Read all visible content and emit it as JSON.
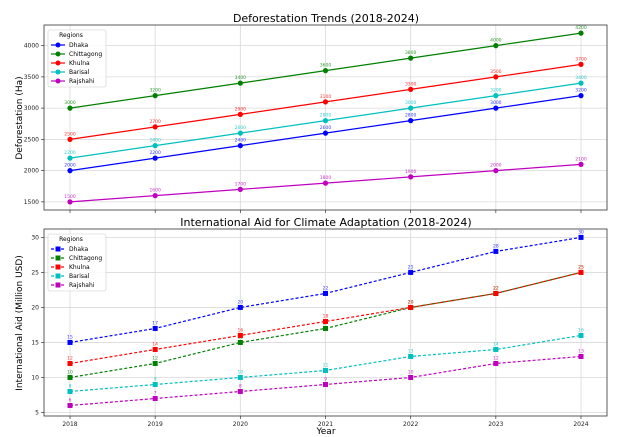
{
  "chart_data": [
    {
      "type": "line",
      "title": "Deforestation Trends (2018-2024)",
      "xlabel": "",
      "ylabel": "Deforestation (Ha)",
      "x": [
        2018,
        2019,
        2020,
        2021,
        2022,
        2023,
        2024
      ],
      "xticks": [
        "2018",
        "2019",
        "2020",
        "2021",
        "2022",
        "2023",
        "2024"
      ],
      "ylim": [
        1370,
        4330
      ],
      "yticks": [
        1500,
        2000,
        2500,
        3000,
        3500,
        4000
      ],
      "grid": true,
      "marker": "circle",
      "linestyle": "solid",
      "legend": {
        "title": "Regions",
        "placement": "top-left"
      },
      "series": [
        {
          "name": "Dhaka",
          "color": "#0000ff",
          "values": [
            2000,
            2200,
            2400,
            2600,
            2800,
            3000,
            3200
          ]
        },
        {
          "name": "Chittagong",
          "color": "#008000",
          "values": [
            3000,
            3200,
            3400,
            3600,
            3800,
            4000,
            4200
          ]
        },
        {
          "name": "Khulna",
          "color": "#ff0000",
          "values": [
            2500,
            2700,
            2900,
            3100,
            3300,
            3500,
            3700
          ]
        },
        {
          "name": "Barisal",
          "color": "#00bfbf",
          "values": [
            2200,
            2400,
            2600,
            2800,
            3000,
            3200,
            3400
          ]
        },
        {
          "name": "Rajshahi",
          "color": "#bf00bf",
          "values": [
            1500,
            1600,
            1700,
            1800,
            1900,
            2000,
            2100
          ]
        }
      ]
    },
    {
      "type": "line",
      "title": "International Aid for Climate Adaptation (2018-2024)",
      "xlabel": "Year",
      "ylabel": "International Aid (Million USD)",
      "x": [
        2018,
        2019,
        2020,
        2021,
        2022,
        2023,
        2024
      ],
      "xticks": [
        "2018",
        "2019",
        "2020",
        "2021",
        "2022",
        "2023",
        "2024"
      ],
      "ylim": [
        4.5,
        31.2
      ],
      "yticks": [
        5,
        10,
        15,
        20,
        25,
        30
      ],
      "grid": true,
      "marker": "square",
      "linestyle": "dashed",
      "legend": {
        "title": "Regions",
        "placement": "top-left"
      },
      "series": [
        {
          "name": "Dhaka",
          "color": "#0000ff",
          "values": [
            15,
            17,
            20,
            22,
            25,
            28,
            30
          ]
        },
        {
          "name": "Chittagong",
          "color": "#008000",
          "values": [
            10,
            12,
            15,
            17,
            20,
            22,
            25
          ]
        },
        {
          "name": "Khulna",
          "color": "#ff0000",
          "values": [
            12,
            14,
            16,
            18,
            20,
            22,
            25
          ]
        },
        {
          "name": "Barisal",
          "color": "#00bfbf",
          "values": [
            8,
            9,
            10,
            11,
            13,
            14,
            16
          ]
        },
        {
          "name": "Rajshahi",
          "color": "#bf00bf",
          "values": [
            6,
            7,
            8,
            9,
            10,
            12,
            13
          ]
        }
      ]
    }
  ]
}
